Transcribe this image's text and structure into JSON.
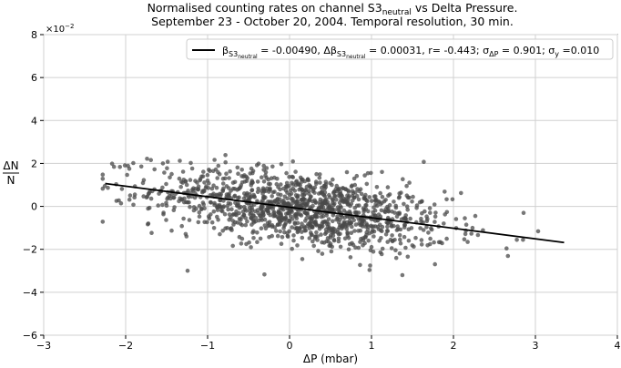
{
  "chart_data": {
    "type": "scatter",
    "title_line1": "Normalised counting rates on channel S3",
    "title_subscript": "neutral",
    "title_line1_tail": " vs Delta Pressure.",
    "title_line2": "September 23 - October 20, 2004. Temporal resolution, 30 min.",
    "xlabel": "ΔP (mbar)",
    "ylabel_num": "ΔN",
    "ylabel_den": "N",
    "y_scale_label": "×10",
    "y_scale_exp": "−2",
    "xlim": [
      -3,
      4
    ],
    "ylim": [
      -6,
      8
    ],
    "xticks": [
      -3,
      -2,
      -1,
      0,
      1,
      2,
      3,
      4
    ],
    "yticks": [
      -6,
      -4,
      -2,
      0,
      2,
      4,
      6,
      8
    ],
    "xtick_labels": [
      "−3",
      "−2",
      "−1",
      "0",
      "1",
      "2",
      "3",
      "4"
    ],
    "ytick_labels": [
      "−6",
      "−4",
      "−2",
      "0",
      "2",
      "4",
      "6",
      "8"
    ],
    "grid": true,
    "legend_position": "top-right",
    "legend": {
      "beta_sym": "β",
      "sub": "S3",
      "subsub": "neutral",
      "beta_val": " = -0.00490, Δβ",
      "dbeta_val": " = 0.00031, r= -0.443; σ",
      "sigma_sub": "ΔP",
      "sigma_val": " = 0.901; σ",
      "sigmay_sub": "y",
      "sigmay_val": " =0.010"
    },
    "fit_line": {
      "slope": -0.49,
      "intercept": -0.04,
      "x_range": [
        -2.25,
        3.35
      ]
    },
    "scatter_stats": {
      "n_points": 1300,
      "x_mean": 0.15,
      "x_std": 0.9,
      "resid_std": 0.85
    },
    "point_color": "#4a4a4a",
    "line_color": "#000000"
  }
}
